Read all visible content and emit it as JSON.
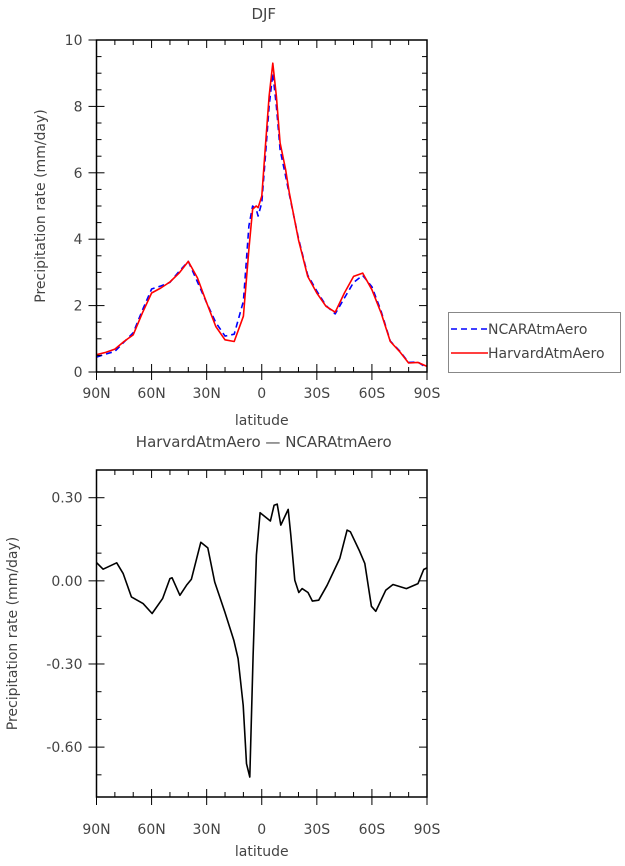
{
  "colors": {
    "ncar": "#0000ff",
    "harvard": "#ff0000",
    "diff": "#000000",
    "axis": "#000000"
  },
  "chart_data": [
    {
      "type": "line",
      "title": "DJF",
      "xlabel": "latitude",
      "ylabel": "Precipitation rate (mm/day)",
      "xlim": [
        90,
        -90
      ],
      "ylim": [
        0,
        10
      ],
      "xticks": [
        90,
        60,
        30,
        0,
        -30,
        -60,
        -90
      ],
      "xtick_labels": [
        "90N",
        "60N",
        "30N",
        "0",
        "30S",
        "60S",
        "90S"
      ],
      "yticks": [
        0,
        2,
        4,
        6,
        8,
        10
      ],
      "ytick_labels": [
        "0",
        "2",
        "4",
        "6",
        "8",
        "10"
      ],
      "legend_position": "right",
      "x": [
        90,
        85,
        80,
        75,
        70,
        65,
        60,
        55,
        50,
        45,
        40,
        35,
        30,
        25,
        20,
        15,
        10,
        7,
        5,
        3,
        2,
        0,
        -2,
        -4,
        -6,
        -8,
        -10,
        -13,
        -15,
        -20,
        -25,
        -30,
        -35,
        -40,
        -45,
        -50,
        -55,
        -60,
        -65,
        -70,
        -75,
        -80,
        -85,
        -90
      ],
      "series": [
        {
          "name": "NCARAtmAero",
          "style": "dashed",
          "color_key": "ncar",
          "values": [
            0.45,
            0.54,
            0.62,
            0.9,
            1.18,
            1.86,
            2.5,
            2.59,
            2.7,
            3.03,
            3.33,
            2.71,
            2.08,
            1.49,
            1.08,
            1.14,
            2.13,
            4.4,
            5.0,
            4.9,
            4.7,
            5.1,
            6.5,
            8.0,
            9.0,
            8.0,
            6.7,
            5.9,
            5.35,
            4.02,
            2.92,
            2.44,
            2.0,
            1.75,
            2.23,
            2.7,
            2.91,
            2.57,
            1.83,
            0.93,
            0.64,
            0.29,
            0.3,
            0.12
          ]
        },
        {
          "name": "HarvardAtmAero",
          "style": "solid",
          "color_key": "harvard",
          "values": [
            0.52,
            0.59,
            0.69,
            0.92,
            1.12,
            1.78,
            2.38,
            2.53,
            2.71,
            2.98,
            3.33,
            2.83,
            2.08,
            1.37,
            0.97,
            0.92,
            1.68,
            3.7,
            4.9,
            5.0,
            4.95,
            5.3,
            6.8,
            8.3,
            9.3,
            8.3,
            6.9,
            6.1,
            5.4,
            3.98,
            2.88,
            2.38,
            1.98,
            1.8,
            2.38,
            2.88,
            2.98,
            2.48,
            1.78,
            0.92,
            0.62,
            0.27,
            0.29,
            0.17
          ]
        }
      ]
    },
    {
      "type": "line",
      "title": "HarvardAtmAero — NCARAtmAero",
      "xlabel": "latitude",
      "ylabel": "Precipitation rate (mm/day)",
      "xlim": [
        90,
        -90
      ],
      "ylim": [
        -0.78,
        0.4
      ],
      "xticks": [
        90,
        60,
        30,
        0,
        -30,
        -60,
        -90
      ],
      "xtick_labels": [
        "90N",
        "60N",
        "30N",
        "0",
        "30S",
        "60S",
        "90S"
      ],
      "yticks": [
        0.3,
        0.0,
        -0.3,
        -0.6
      ],
      "ytick_labels": [
        "0.30",
        "0.00",
        "-0.30",
        "-0.60"
      ],
      "series": [
        {
          "name": "HarvardAtmAero - NCARAtmAero",
          "style": "solid",
          "color_key": "diff",
          "x": [
            90,
            86.4,
            79,
            75.5,
            71,
            64.6,
            59.7,
            54,
            50,
            48.8,
            44.6,
            41,
            38.3,
            33.2,
            29.4,
            25.6,
            20.1,
            15.2,
            12.9,
            10.1,
            8.3,
            6.5,
            4.7,
            2.9,
            0.9,
            -4.7,
            -6.7,
            -8.4,
            -10.4,
            -14.4,
            -15.8,
            -18,
            -20.2,
            -22,
            -25.2,
            -27.6,
            -31,
            -35.6,
            -42.5,
            -46.5,
            -48.3,
            -53,
            -56.1,
            -59.7,
            -62.1,
            -67.5,
            -71.5,
            -78.8,
            -85.1,
            -88.2,
            -90
          ],
          "values": [
            0.066,
            0.042,
            0.065,
            0.027,
            -0.058,
            -0.082,
            -0.118,
            -0.064,
            0.008,
            0.011,
            -0.052,
            -0.016,
            0.006,
            0.139,
            0.119,
            -0.004,
            -0.112,
            -0.214,
            -0.281,
            -0.449,
            -0.66,
            -0.708,
            -0.27,
            0.093,
            0.246,
            0.216,
            0.273,
            0.277,
            0.201,
            0.258,
            0.165,
            0.002,
            -0.042,
            -0.028,
            -0.042,
            -0.073,
            -0.07,
            -0.016,
            0.081,
            0.183,
            0.177,
            0.111,
            0.063,
            -0.092,
            -0.11,
            -0.034,
            -0.013,
            -0.028,
            -0.01,
            0.041,
            0.047
          ]
        }
      ]
    }
  ]
}
